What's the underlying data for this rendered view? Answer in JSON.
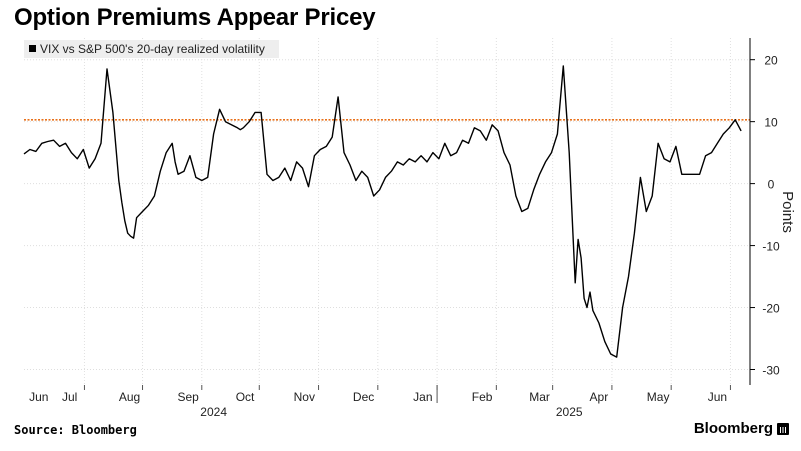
{
  "title": "Option Premiums Appear Pricey",
  "source": "Source: Bloomberg",
  "brand": "Bloomberg",
  "chart_data": {
    "type": "line",
    "legend": "VIX vs S&P 500's 20-day realized volatility",
    "ylabel": "Points",
    "y_ticks": [
      20,
      10,
      0,
      -10,
      -20,
      -30
    ],
    "y_tick_labels": [
      "20",
      "10",
      "0",
      "-10",
      "-20",
      "-30"
    ],
    "ylim": [
      -32.5,
      23.5
    ],
    "x_range": [
      0,
      12.25
    ],
    "months": [
      {
        "label": "Jun",
        "pos": 0.25
      },
      {
        "label": "Jul",
        "pos": 0.77
      },
      {
        "label": "Aug",
        "pos": 1.78
      },
      {
        "label": "Sep",
        "pos": 2.77
      },
      {
        "label": "Oct",
        "pos": 3.73
      },
      {
        "label": "Nov",
        "pos": 4.73
      },
      {
        "label": "Dec",
        "pos": 5.73
      },
      {
        "label": "Jan",
        "pos": 6.73
      },
      {
        "label": "Feb",
        "pos": 7.73
      },
      {
        "label": "Mar",
        "pos": 8.7
      },
      {
        "label": "Apr",
        "pos": 9.7
      },
      {
        "label": "May",
        "pos": 10.7
      },
      {
        "label": "Jun",
        "pos": 11.7
      }
    ],
    "month_dividers": [
      1.02,
      2.0,
      3.0,
      3.97,
      4.97,
      5.97,
      6.97,
      7.97,
      8.92,
      9.92,
      10.92,
      11.92
    ],
    "years": [
      {
        "label": "2024",
        "pos": 3.2
      },
      {
        "label": "2025",
        "pos": 9.2
      }
    ],
    "year_divider": 6.97,
    "reference_line": {
      "y": 10.3,
      "color": "#e8701a"
    },
    "line_color": "#000000",
    "x": [
      0.0,
      0.1,
      0.2,
      0.3,
      0.4,
      0.5,
      0.6,
      0.7,
      0.8,
      0.9,
      1.0,
      1.1,
      1.2,
      1.3,
      1.4,
      1.5,
      1.6,
      1.65,
      1.7,
      1.75,
      1.8,
      1.85,
      1.9,
      2.0,
      2.1,
      2.2,
      2.3,
      2.4,
      2.5,
      2.55,
      2.6,
      2.7,
      2.8,
      2.9,
      3.0,
      3.1,
      3.2,
      3.3,
      3.4,
      3.5,
      3.6,
      3.65,
      3.7,
      3.8,
      3.9,
      4.0,
      4.1,
      4.2,
      4.3,
      4.4,
      4.5,
      4.6,
      4.7,
      4.8,
      4.9,
      5.0,
      5.1,
      5.2,
      5.3,
      5.4,
      5.5,
      5.6,
      5.7,
      5.8,
      5.9,
      6.0,
      6.1,
      6.2,
      6.3,
      6.4,
      6.5,
      6.6,
      6.7,
      6.8,
      6.9,
      7.0,
      7.1,
      7.2,
      7.3,
      7.4,
      7.5,
      7.6,
      7.7,
      7.8,
      7.9,
      8.0,
      8.1,
      8.2,
      8.3,
      8.4,
      8.5,
      8.6,
      8.7,
      8.8,
      8.9,
      9.0,
      9.1,
      9.2,
      9.3,
      9.35,
      9.4,
      9.45,
      9.5,
      9.55,
      9.6,
      9.7,
      9.8,
      9.9,
      10.0,
      10.1,
      10.2,
      10.3,
      10.4,
      10.5,
      10.6,
      10.7,
      10.8,
      10.9,
      11.0,
      11.1,
      11.2,
      11.3,
      11.4,
      11.5,
      11.6,
      11.7,
      11.8,
      11.9,
      12.0,
      12.1
    ],
    "y": [
      4.8,
      5.5,
      5.2,
      6.5,
      6.8,
      7.0,
      6.0,
      6.5,
      5.0,
      4.0,
      5.5,
      2.5,
      4.0,
      6.5,
      18.5,
      11.5,
      0.5,
      -3.0,
      -6.0,
      -8.0,
      -8.5,
      -8.8,
      -5.5,
      -4.5,
      -3.5,
      -2.0,
      2.0,
      5.0,
      6.5,
      3.5,
      1.5,
      2.0,
      4.5,
      1.0,
      0.5,
      1.0,
      8.0,
      12.0,
      10.0,
      9.5,
      9.0,
      8.7,
      9.0,
      10.0,
      11.5,
      11.5,
      1.5,
      0.5,
      1.0,
      2.5,
      0.5,
      3.5,
      2.5,
      -0.5,
      4.5,
      5.5,
      6.0,
      7.5,
      14.0,
      5.0,
      3.0,
      0.5,
      2.0,
      1.0,
      -2.0,
      -1.0,
      1.0,
      2.0,
      3.5,
      3.0,
      4.0,
      3.5,
      4.5,
      3.5,
      5.0,
      4.0,
      6.5,
      4.5,
      5.0,
      7.0,
      6.5,
      9.0,
      8.5,
      7.0,
      9.5,
      8.5,
      5.0,
      3.0,
      -2.0,
      -4.5,
      -4.0,
      -1.0,
      1.5,
      3.5,
      5.0,
      8.0,
      19.0,
      5.0,
      -16.0,
      -9.0,
      -12.0,
      -18.5,
      -20.0,
      -17.5,
      -20.5,
      -22.5,
      -25.5,
      -27.5,
      -28.0,
      -20.0,
      -15.0,
      -8.0,
      1.0,
      -4.5,
      -2.0,
      6.5,
      4.0,
      3.5,
      6.0,
      1.5,
      1.5,
      1.5,
      1.5,
      4.5,
      5.0,
      6.5,
      8.0,
      9.0,
      10.3,
      8.5
    ]
  }
}
